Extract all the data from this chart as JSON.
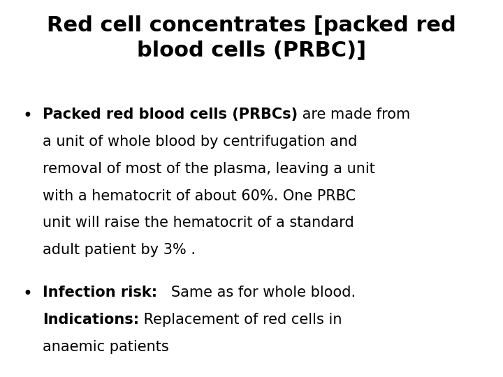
{
  "title_line1": "Red cell concentrates [packed red",
  "title_line2": "blood cells (PRBC)]",
  "background_color": "#ffffff",
  "text_color": "#000000",
  "title_fontsize": 22,
  "body_fontsize": 15,
  "bullet1_bold": "Packed red blood cells (PRBCs)",
  "bullet1_normal": " are made from a unit of whole blood by centrifugation and removal of most of the plasma, leaving a unit with a hematocrit of about 60%. One PRBC unit will raise the hematocrit of a standard adult patient by 3% .",
  "bullet2_bold1": "Infection risk:",
  "bullet2_normal1": "   Same as for whole blood.",
  "bullet2_bold2": "Indications:",
  "bullet2_normal2": " Replacement of red cells in anaemic patients",
  "bullet1_lines": [
    {
      "bold": "Packed red blood cells (PRBCs)",
      "normal": " are made from"
    },
    {
      "bold": "",
      "normal": "a unit of whole blood by centrifugation and"
    },
    {
      "bold": "",
      "normal": "removal of most of the plasma, leaving a unit"
    },
    {
      "bold": "",
      "normal": "with a hematocrit of about 60%. One PRBC"
    },
    {
      "bold": "",
      "normal": "unit will raise the hematocrit of a standard"
    },
    {
      "bold": "",
      "normal": "adult patient by 3% ."
    }
  ],
  "bullet2_lines": [
    {
      "bold": "Infection risk:",
      "normal": "   Same as for whole blood."
    },
    {
      "bold": "Indications:",
      "normal": " Replacement of red cells in"
    },
    {
      "bold": "",
      "normal": "anaemic patients"
    }
  ],
  "font_family": "DejaVu Sans"
}
